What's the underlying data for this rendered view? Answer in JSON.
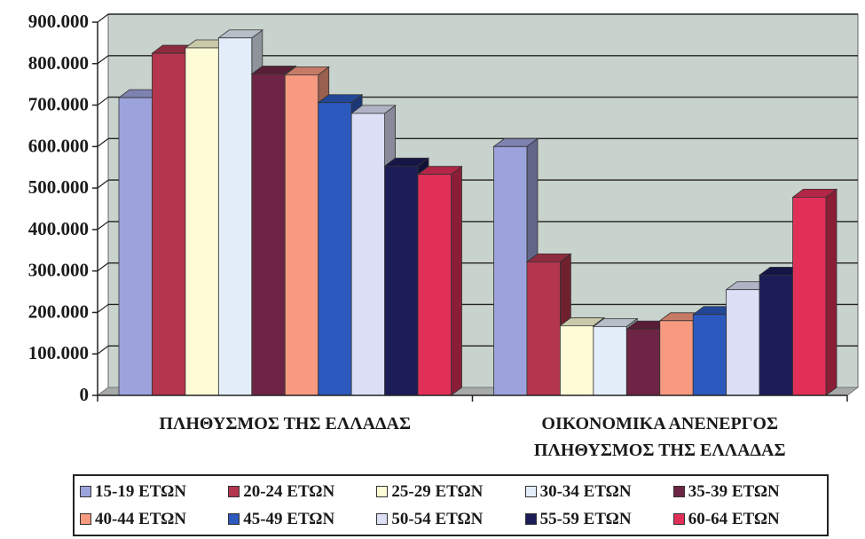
{
  "chart_data": {
    "type": "bar",
    "categories": [
      "ΠΛΗΘΥΣΜΟΣ ΤΗΣ ΕΛΛΑΔΑΣ",
      "ΟΙΚΟΝΟΜΙΚΑ ΑΝΕΝΕΡΓΟΣ ΠΛΗΘΥΣΜΟΣ ΤΗΣ ΕΛΛΑΔΑΣ"
    ],
    "category_lines": [
      [
        "ΠΛΗΘΥΣΜΟΣ ΤΗΣ ΕΛΛΑΔΑΣ"
      ],
      [
        "ΟΙΚΟΝΟΜΙΚΑ ΑΝΕΝΕΡΓΟΣ",
        "ΠΛΗΘΥΣΜΟΣ ΤΗΣ ΕΛΛΑΔΑΣ"
      ]
    ],
    "series": [
      {
        "name": "15-19 ΕΤΩΝ",
        "color": "#9ca3dc",
        "values": [
          718000,
          600000
        ]
      },
      {
        "name": "20-24 ΕΤΩΝ",
        "color": "#b3364e",
        "values": [
          825000,
          322000
        ]
      },
      {
        "name": "25-29 ΕΤΩΝ",
        "color": "#fdfcd6",
        "values": [
          838000,
          168000
        ]
      },
      {
        "name": "30-34 ΕΤΩΝ",
        "color": "#e4eefa",
        "values": [
          862000,
          166000
        ]
      },
      {
        "name": "35-39 ΕΤΩΝ",
        "color": "#6e2545",
        "values": [
          775000,
          160000
        ]
      },
      {
        "name": "40-44 ΕΤΩΝ",
        "color": "#f79a80",
        "values": [
          773000,
          180000
        ]
      },
      {
        "name": "45-49 ΕΤΩΝ",
        "color": "#2c59bd",
        "values": [
          706000,
          195000
        ]
      },
      {
        "name": "50-54 ΕΤΩΝ",
        "color": "#dcdff6",
        "values": [
          680000,
          255000
        ]
      },
      {
        "name": "55-59 ΕΤΩΝ",
        "color": "#1c1c58",
        "values": [
          553000,
          290000
        ]
      },
      {
        "name": "60-64 ΕΤΩΝ",
        "color": "#e03058",
        "values": [
          533000,
          478000
        ]
      }
    ],
    "y_ticks": [
      "0",
      "100.000",
      "200.000",
      "300.000",
      "400.000",
      "500.000",
      "600.000",
      "700.000",
      "800.000",
      "900.000"
    ],
    "ylim": [
      0,
      900000
    ],
    "grid": true,
    "legend_position": "bottom",
    "wall_color": "#c9d3cd",
    "floor_color": "#a6aaa8"
  }
}
